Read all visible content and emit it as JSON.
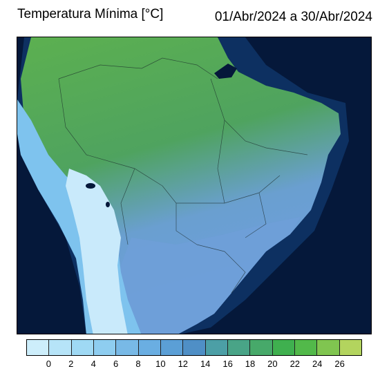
{
  "header": {
    "title": "Temperatura Mínima [°C]",
    "period": "01/Abr/2024 a 30/Abr/2024"
  },
  "legend": {
    "colors": [
      "#cdeefb",
      "#b6e4f8",
      "#9fd9f4",
      "#8ecdf0",
      "#78b9e6",
      "#6aaee2",
      "#5b9fd6",
      "#4f8fc6",
      "#4c9fa6",
      "#49a487",
      "#47a96a",
      "#3fb04f",
      "#52b94a",
      "#80c550",
      "#b3d45e"
    ],
    "tick_labels": [
      "0",
      "2",
      "4",
      "6",
      "8",
      "10",
      "12",
      "14",
      "16",
      "18",
      "20",
      "22",
      "24",
      "26"
    ]
  },
  "map": {
    "ocean_color": "#05183a",
    "land_warm_color": "#5cb34e",
    "land_cool_color": "#6e9fd8",
    "andes_color": "#c9eafb"
  }
}
